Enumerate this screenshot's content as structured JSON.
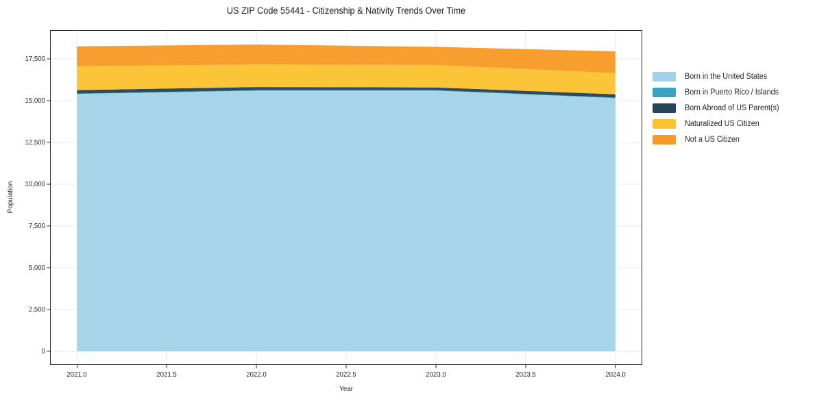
{
  "figure": {
    "title": "US ZIP Code 55441 - Citizenship & Nativity Trends Over Time"
  },
  "chart_data": {
    "type": "area",
    "stacked": true,
    "title": "US ZIP Code 55441 - Citizenship & Nativity Trends Over Time",
    "xlabel": "Year",
    "ylabel": "Population",
    "x": [
      2021,
      2022,
      2023,
      2024
    ],
    "series": [
      {
        "name": "Born in the United States",
        "color": "#A2D2E8",
        "values": [
          15400,
          15600,
          15600,
          15150
        ]
      },
      {
        "name": "Born in Puerto Rico / Islands",
        "color": "#3BA3BF",
        "values": [
          25,
          25,
          25,
          30
        ]
      },
      {
        "name": "Born Abroad of US Parent(s)",
        "color": "#24455A",
        "values": [
          205,
          190,
          165,
          200
        ]
      },
      {
        "name": "Naturalized US Citizen",
        "color": "#FCC231",
        "values": [
          1430,
          1345,
          1340,
          1270
        ]
      },
      {
        "name": "Not a US Citizen",
        "color": "#F79A27",
        "values": [
          1190,
          1200,
          1090,
          1300
        ]
      }
    ],
    "totals": [
      18250,
      18360,
      18220,
      17950
    ],
    "xlim": [
      2020.85,
      2024.15
    ],
    "ylim": [
      -820,
      19220
    ],
    "xtick_values": [
      2021.0,
      2021.5,
      2022.0,
      2022.5,
      2023.0,
      2023.5,
      2024.0
    ],
    "xtick_labels": [
      "2021.0",
      "2021.5",
      "2022.0",
      "2022.5",
      "2023.0",
      "2023.5",
      "2024.0"
    ],
    "ytick_values": [
      0,
      2500,
      5000,
      7500,
      10000,
      12500,
      15000,
      17500
    ],
    "ytick_labels": [
      "0",
      "2,500",
      "5,000",
      "7,500",
      "10,000",
      "12,500",
      "15,000",
      "17,500"
    ],
    "grid": true,
    "grid_color": "#E9E9E9",
    "spine_color": "#262626",
    "text_color": "#262626",
    "legend_position": "right",
    "legend_frame": false
  }
}
